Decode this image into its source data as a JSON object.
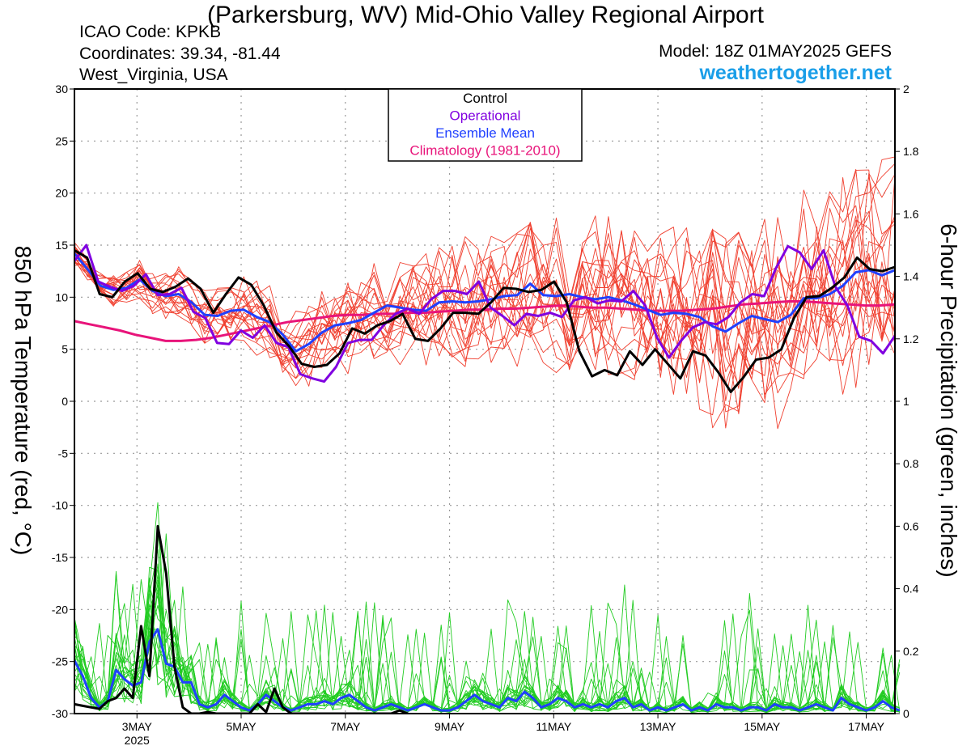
{
  "header": {
    "title": "(Parkersburg, WV) Mid-Ohio Valley Regional Airport",
    "icao": "ICAO Code: KPKB",
    "coords": "Coordinates: 39.34, -81.44",
    "region": "West_Virginia, USA",
    "model": "Model: 18Z 01MAY2025 GEFS",
    "site": "weathertogether.net"
  },
  "chart_data": {
    "type": "line",
    "ylabel": "850 hPa Temperature (red, °C)",
    "y2label": "6-hour Precipitation (green, inches)",
    "xlim": [
      0,
      63
    ],
    "ylim": [
      -30,
      30
    ],
    "y2lim": [
      0,
      2
    ],
    "yticks": [
      "30",
      "25",
      "20",
      "15",
      "10",
      "5",
      "0",
      "-5",
      "-10",
      "-15",
      "-20",
      "-25",
      "-30"
    ],
    "y2ticks": [
      "2",
      "1.8",
      "1.6",
      "1.4",
      "1.2",
      "1",
      "0.8",
      "0.6",
      "0.4",
      "0.2",
      "0"
    ],
    "xticks": [
      {
        "x": 4.8,
        "label": "3MAY",
        "sub": "2025"
      },
      {
        "x": 12.8,
        "label": "5MAY",
        "sub": ""
      },
      {
        "x": 20.8,
        "label": "7MAY",
        "sub": ""
      },
      {
        "x": 28.8,
        "label": "9MAY",
        "sub": ""
      },
      {
        "x": 36.8,
        "label": "11MAY",
        "sub": ""
      },
      {
        "x": 44.8,
        "label": "13MAY",
        "sub": ""
      },
      {
        "x": 52.8,
        "label": "15MAY",
        "sub": ""
      },
      {
        "x": 60.8,
        "label": "17MAY",
        "sub": ""
      }
    ],
    "grid": true,
    "legend": {
      "placement": "top-center",
      "entries": [
        {
          "label": "Control",
          "color": "#000000"
        },
        {
          "label": "Operational",
          "color": "#8000e0"
        },
        {
          "label": "Ensemble Mean",
          "color": "#2040ff"
        },
        {
          "label": "Climatology (1981-2010)",
          "color": "#e8147a"
        }
      ]
    },
    "colors": {
      "members_temp": "#f04030",
      "members_precip": "#22cc22",
      "control": "#000000",
      "operational": "#8000e0",
      "mean": "#2040ff",
      "climatology": "#e8147a"
    },
    "series": {
      "control_temp": [
        14.5,
        13.8,
        10.3,
        10,
        11.5,
        12.3,
        10.8,
        10.5,
        11,
        11.8,
        10.8,
        8.5,
        10.3,
        11.9,
        11.2,
        9.2,
        6.6,
        5.3,
        3.6,
        3.3,
        3.5,
        4.6,
        7,
        6.5,
        7.3,
        7.7,
        8.4,
        6,
        5.8,
        7,
        8.5,
        8.5,
        8.4,
        9.5,
        10.9,
        10.8,
        10.5,
        10.7,
        11.5,
        9.5,
        4.8,
        2.4,
        3,
        2.5,
        4.8,
        3.5,
        5,
        3.6,
        2.2,
        4.8,
        4.4,
        2.8,
        0.9,
        2.3,
        4,
        4.2,
        5,
        8,
        10,
        10.1,
        10.9,
        11.9,
        13.8,
        12.7,
        12.5,
        12.9
      ],
      "operational_temp": [
        13.5,
        15,
        11.5,
        11,
        10.6,
        11.1,
        12.2,
        10.2,
        10.3,
        10.9,
        8.6,
        8,
        5.6,
        5.5,
        6.8,
        6.1,
        7.3,
        5.6,
        5.2,
        2.6,
        2.2,
        1.9,
        3.3,
        5.6,
        5.9,
        5.9,
        7.3,
        8.4,
        8.9,
        8.4,
        9.8,
        10.6,
        10.6,
        10.3,
        11.5,
        9,
        8.2,
        7.3,
        8.4,
        8.2,
        8.5,
        8.1,
        9.7,
        10,
        9.4,
        9.7,
        9.6,
        10.6,
        9.2,
        6.1,
        4.2,
        5.8,
        7.1,
        7.6,
        7.4,
        8.1,
        9.5,
        10.3,
        10.1,
        12.8,
        14.9,
        14.3,
        12.7,
        14.5,
        11,
        9.2,
        6.2,
        5.8,
        4.6,
        6.3
      ],
      "mean_temp": [
        14.2,
        12.7,
        11.1,
        10.7,
        10.9,
        11.7,
        10.6,
        10.1,
        10.3,
        9.5,
        8.3,
        8.2,
        8.7,
        8.8,
        8.1,
        7.6,
        6.4,
        4.8,
        5.5,
        6.6,
        7.3,
        7.5,
        7.8,
        8.5,
        9.2,
        9,
        8.8,
        8.7,
        9.5,
        9.6,
        9.5,
        9.6,
        9.8,
        10.1,
        10.2,
        11.3,
        10.2,
        10.1,
        10.3,
        10,
        9.8,
        10,
        9.7,
        9.3,
        8.8,
        8.3,
        8.5,
        8.4,
        8.1,
        7.2,
        6.7,
        7.5,
        8.2,
        7.9,
        7.6,
        8.3,
        9.9,
        9.9,
        10.3,
        11.1,
        12.4,
        12.6,
        12.1,
        12.6
      ],
      "climatology_temp": [
        7.7,
        7.4,
        7.1,
        6.8,
        6.4,
        6.1,
        5.8,
        5.8,
        5.9,
        6.1,
        6.4,
        6.7,
        7,
        7.3,
        7.6,
        7.8,
        8,
        8.2,
        8.3,
        8.3,
        8.4,
        8.4,
        8.5,
        8.5,
        8.6,
        8.7,
        8.8,
        8.8,
        8.9,
        8.9,
        9,
        9.1,
        9.2,
        9.1,
        9,
        9,
        8.9,
        8.8,
        8.7,
        8.7,
        8.7,
        8.8,
        8.9,
        9.1,
        9.3,
        9.4,
        9.5,
        9.6,
        9.6,
        9.5,
        9.4,
        9.3,
        9.2,
        9.2,
        9.3
      ],
      "control_precip": [
        0.03,
        0.025,
        0.02,
        0.015,
        0.04,
        0.05,
        0.08,
        0.05,
        0.28,
        0.12,
        0.6,
        0.45,
        0.15,
        0.02,
        0,
        0,
        0.005,
        0,
        0,
        0,
        0,
        0,
        0.03,
        0.005,
        0.08,
        0.02,
        0,
        0,
        0,
        0,
        0,
        0,
        0,
        0,
        0,
        0,
        0,
        0,
        0,
        0.01,
        0
      ],
      "mean_precip": [
        0.17,
        0.12,
        0.05,
        0.02,
        0.04,
        0.14,
        0.11,
        0.09,
        0.1,
        0.23,
        0.27,
        0.16,
        0.15,
        0.1,
        0.1,
        0.03,
        0.02,
        0.03,
        0.06,
        0.04,
        0.02,
        0.01,
        0.03,
        0.06,
        0.04,
        0.02,
        0.01,
        0.02,
        0.03,
        0.03,
        0.04,
        0.03,
        0.05,
        0.06,
        0.04,
        0.02,
        0.01,
        0.02,
        0.03,
        0.02,
        0.01,
        0.02,
        0.03,
        0.02,
        0.01,
        0.01,
        0.02,
        0.04,
        0.06,
        0.04,
        0.03,
        0.02,
        0.05,
        0.04,
        0.07,
        0.05,
        0.02,
        0.03,
        0.05,
        0.04,
        0.02,
        0.03,
        0.02,
        0.03,
        0.02,
        0.04,
        0.05,
        0.02,
        0.03,
        0.01,
        0.02,
        0.01,
        0.02,
        0.03,
        0.01,
        0.02,
        0.01,
        0.03,
        0.02,
        0.02,
        0.01,
        0.02,
        0.02,
        0.01,
        0.03,
        0.02,
        0.02,
        0.01,
        0.02,
        0.03,
        0.02,
        0.01,
        0.05,
        0.03,
        0.02,
        0.01,
        0.02,
        0.04,
        0.02,
        0.01
      ]
    }
  }
}
